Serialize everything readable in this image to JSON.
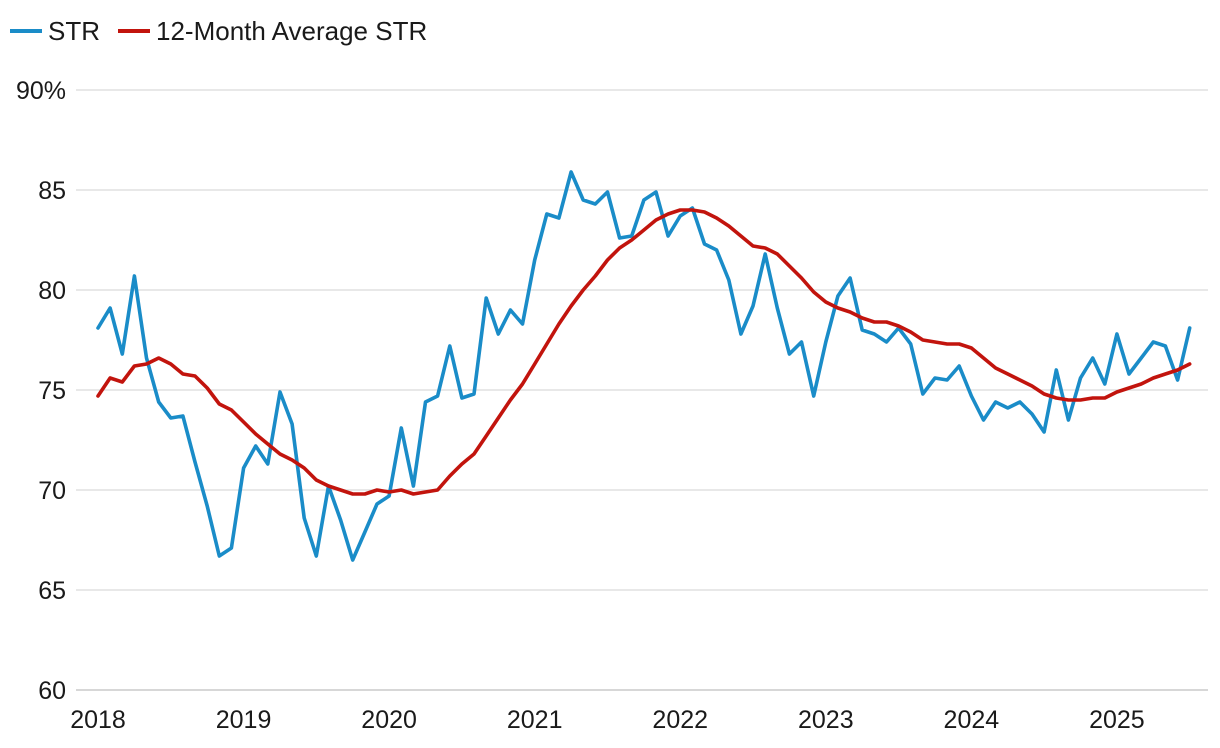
{
  "chart_data": {
    "type": "line",
    "title": "",
    "xlabel": "",
    "ylabel": "",
    "ylim": [
      60,
      90
    ],
    "y_ticks": [
      60,
      65,
      70,
      75,
      80,
      85,
      90
    ],
    "y_tick_labels": [
      "60",
      "65",
      "70",
      "75",
      "80",
      "85",
      "90%"
    ],
    "x_tick_labels": [
      "2018",
      "2019",
      "2020",
      "2021",
      "2022",
      "2023",
      "2024",
      "2025"
    ],
    "x_start": "2018-01",
    "legend_position": "top-left",
    "grid": true,
    "series": [
      {
        "name": "STR",
        "color": "#1a8cc8",
        "values": [
          78.1,
          79.1,
          76.8,
          80.7,
          76.6,
          74.4,
          73.6,
          73.7,
          71.4,
          69.2,
          66.7,
          67.1,
          71.1,
          72.2,
          71.3,
          74.9,
          73.3,
          68.6,
          66.7,
          70.2,
          68.5,
          66.5,
          67.9,
          69.3,
          69.7,
          73.1,
          70.2,
          74.4,
          74.7,
          77.2,
          74.6,
          74.8,
          79.6,
          77.8,
          79.0,
          78.3,
          81.5,
          83.8,
          83.6,
          85.9,
          84.5,
          84.3,
          84.9,
          82.6,
          82.7,
          84.5,
          84.9,
          82.7,
          83.7,
          84.1,
          82.3,
          82.0,
          80.5,
          77.8,
          79.2,
          81.8,
          79.1,
          76.8,
          77.4,
          74.7,
          77.4,
          79.7,
          80.6,
          78.0,
          77.8,
          77.4,
          78.1,
          77.3,
          74.8,
          75.6,
          75.5,
          76.2,
          74.7,
          73.5,
          74.4,
          74.1,
          74.4,
          73.8,
          72.9,
          76.0,
          73.5,
          75.6,
          76.6,
          75.3,
          77.8,
          75.8,
          76.6,
          77.4,
          77.2,
          75.5,
          78.1
        ]
      },
      {
        "name": "12-Month Average STR",
        "color": "#c2140d",
        "values": [
          74.7,
          75.6,
          75.4,
          76.2,
          76.3,
          76.6,
          76.3,
          75.8,
          75.7,
          75.1,
          74.3,
          74.0,
          73.4,
          72.8,
          72.3,
          71.8,
          71.5,
          71.1,
          70.5,
          70.2,
          70.0,
          69.8,
          69.8,
          70.0,
          69.9,
          70.0,
          69.8,
          69.9,
          70.0,
          70.7,
          71.3,
          71.8,
          72.7,
          73.6,
          74.5,
          75.3,
          76.3,
          77.3,
          78.3,
          79.2,
          80.0,
          80.7,
          81.5,
          82.1,
          82.5,
          83.0,
          83.5,
          83.8,
          84.0,
          84.0,
          83.9,
          83.6,
          83.2,
          82.7,
          82.2,
          82.1,
          81.8,
          81.2,
          80.6,
          79.9,
          79.4,
          79.1,
          78.9,
          78.6,
          78.4,
          78.4,
          78.2,
          77.9,
          77.5,
          77.4,
          77.3,
          77.3,
          77.1,
          76.6,
          76.1,
          75.8,
          75.5,
          75.2,
          74.8,
          74.6,
          74.5,
          74.5,
          74.6,
          74.6,
          74.9,
          75.1,
          75.3,
          75.6,
          75.8,
          76.0,
          76.3
        ]
      }
    ]
  }
}
